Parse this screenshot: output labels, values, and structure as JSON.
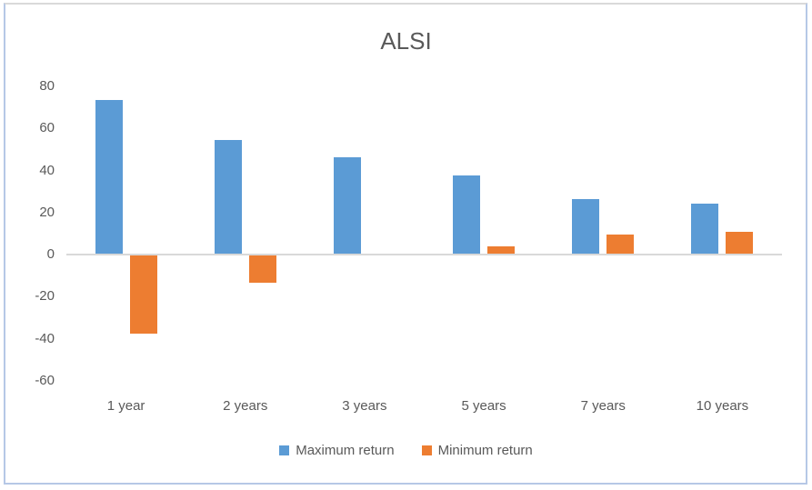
{
  "chart_data": {
    "type": "bar",
    "title": "ALSI",
    "categories": [
      "1 year",
      "2 years",
      "3 years",
      "5 years",
      "7 years",
      "10 years"
    ],
    "series": [
      {
        "name": "Maximum return",
        "color": "#5B9BD5",
        "values": [
          73,
          54,
          46,
          37,
          26,
          24
        ]
      },
      {
        "name": "Minimum return",
        "color": "#ED7D31",
        "values": [
          -37,
          -13,
          0,
          3.5,
          9,
          10.5
        ]
      }
    ],
    "xlabel": "",
    "ylabel": "",
    "y_axis": {
      "min": -60,
      "max": 80,
      "tick_step": 20,
      "ticks": [
        80,
        60,
        40,
        20,
        0,
        -20,
        -40,
        -60
      ]
    },
    "grid": false,
    "legend_position": "bottom"
  },
  "colors": {
    "bar_max": "#5B9BD5",
    "bar_min": "#ED7D31",
    "text": "#595959",
    "axis_line": "#D9D9D9",
    "frame_border": "#B6C8E6",
    "frame_border_top": "#D9D9D9",
    "background": "#FFFFFF"
  }
}
